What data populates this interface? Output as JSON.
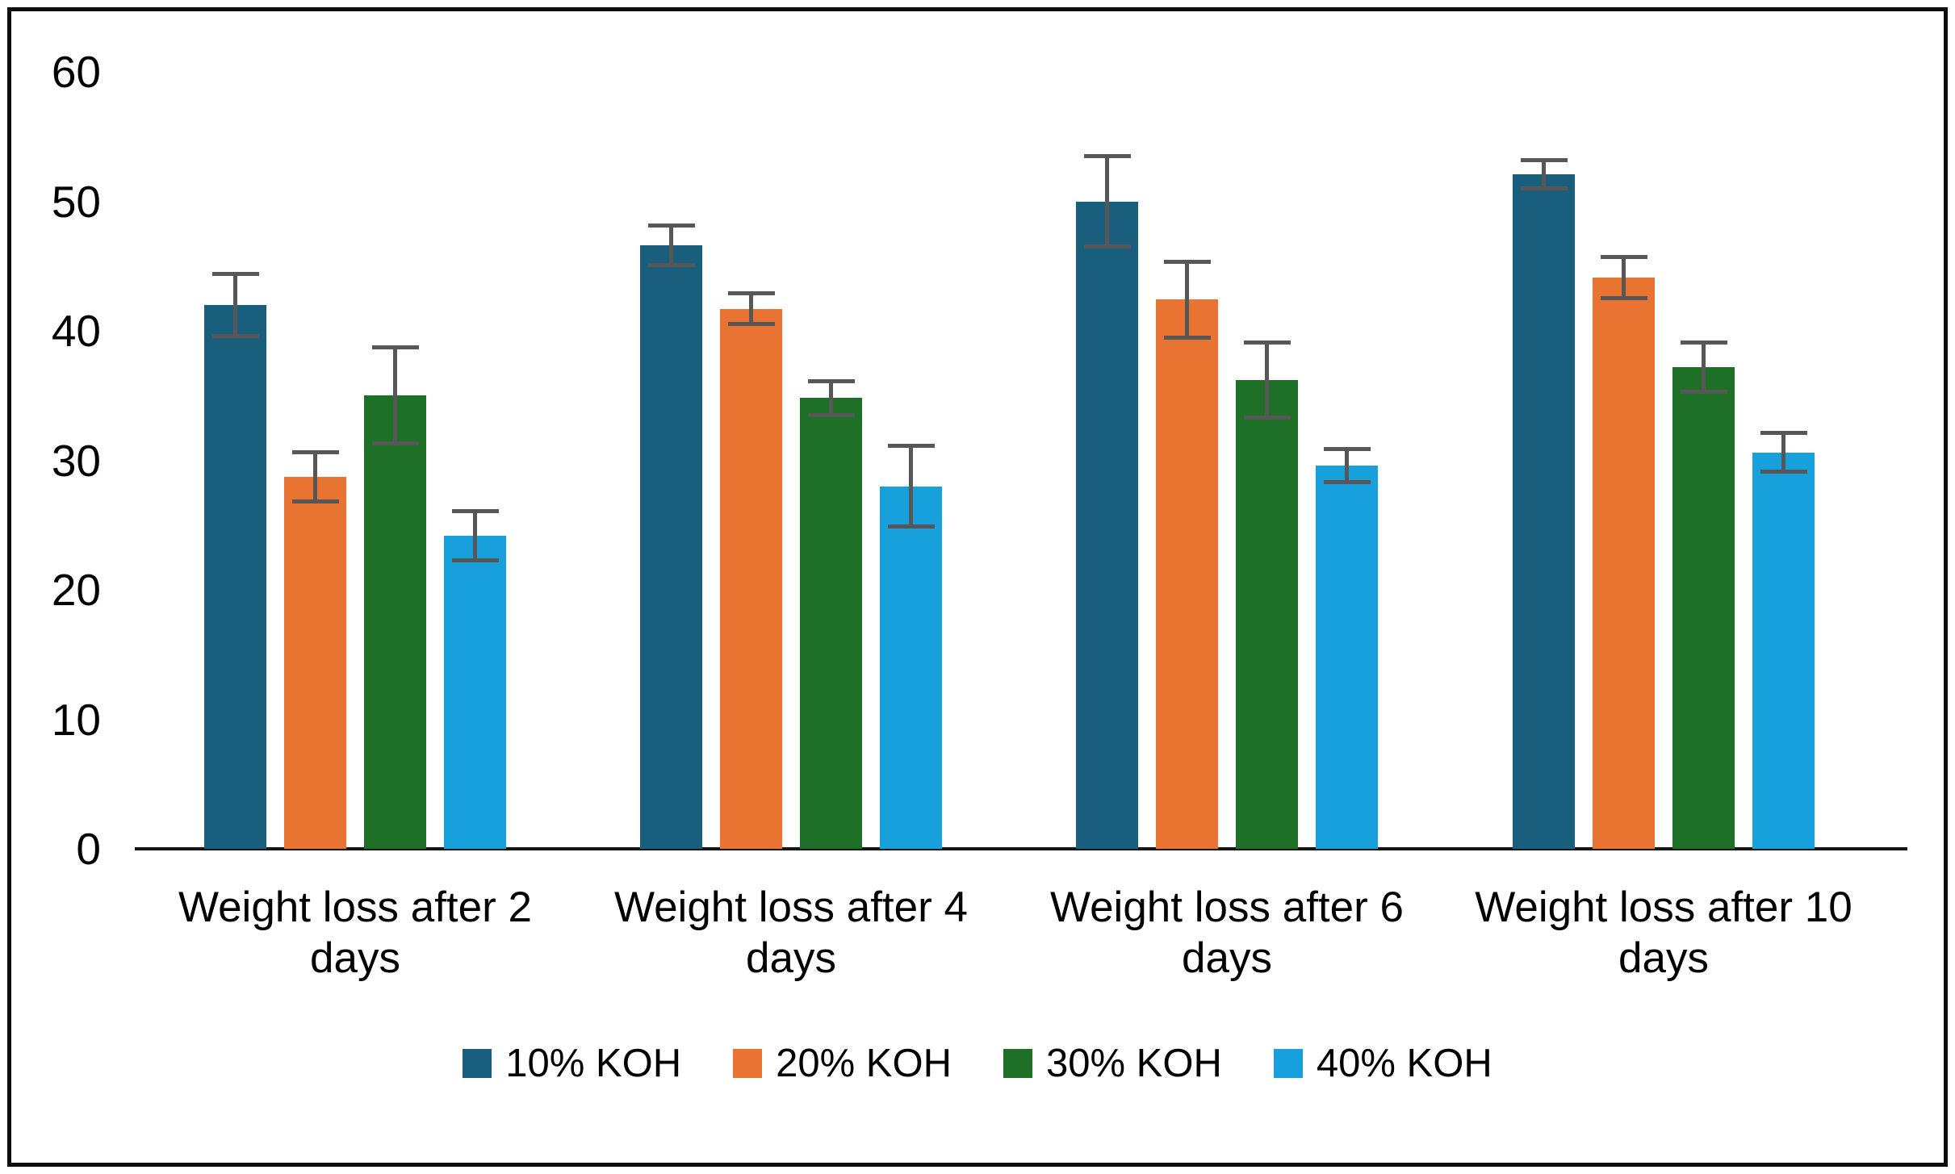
{
  "chart_data": {
    "type": "bar",
    "title": "",
    "categories": [
      "Weight loss after 2 days",
      "Weight loss after 4 days",
      "Weight loss after 6 days",
      "Weight loss after 10 days"
    ],
    "series": [
      {
        "name": "10% KOH",
        "color": "#1A5E7D",
        "values": [
          42.0,
          46.6,
          50.0,
          52.1
        ],
        "errors": [
          2.4,
          1.5,
          3.5,
          1.1
        ]
      },
      {
        "name": "20% KOH",
        "color": "#E97432",
        "values": [
          28.7,
          41.7,
          42.4,
          44.1
        ],
        "errors": [
          1.9,
          1.2,
          2.9,
          1.6
        ]
      },
      {
        "name": "30% KOH",
        "color": "#1D7026",
        "values": [
          35.0,
          34.8,
          36.2,
          37.2
        ],
        "errors": [
          3.7,
          1.3,
          2.9,
          1.9
        ]
      },
      {
        "name": "40% KOH",
        "color": "#17A0DB",
        "values": [
          24.2,
          28.0,
          29.6,
          30.6
        ],
        "errors": [
          1.9,
          3.1,
          1.3,
          1.5
        ]
      }
    ],
    "y_axis": {
      "min": 0,
      "max": 60,
      "tick_interval": 10,
      "tick_labels": [
        "60",
        "50",
        "40",
        "30",
        "20",
        "10",
        "0"
      ]
    },
    "error_bars": true,
    "error_bar_color": "#575757",
    "gridlines": false,
    "legend_position": "bottom"
  }
}
